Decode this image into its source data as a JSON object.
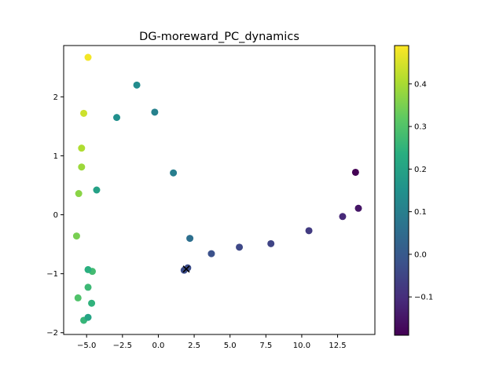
{
  "chart_data": {
    "type": "scatter",
    "title": "DG-moreward_PC_dynamics",
    "xlabel": "",
    "ylabel": "",
    "xlim": [
      -6.6,
      15.1
    ],
    "ylim": [
      -2.03,
      2.87
    ],
    "xticks": [
      -5.0,
      -2.5,
      0.0,
      2.5,
      5.0,
      7.5,
      10.0,
      12.5
    ],
    "xtick_labels": [
      "−5.0",
      "−2.5",
      "0.0",
      "2.5",
      "5.0",
      "7.5",
      "10.0",
      "12.5"
    ],
    "yticks": [
      -2,
      -1,
      0,
      1,
      2
    ],
    "ytick_labels": [
      "−2",
      "−1",
      "0",
      "1",
      "2"
    ],
    "grid": false,
    "colormap": "viridis",
    "colorbar": {
      "range": [
        -0.19,
        0.49
      ],
      "ticks": [
        -0.1,
        0.0,
        0.1,
        0.2,
        0.3,
        0.4
      ],
      "tick_labels": [
        "−0.1",
        "0.0",
        "0.1",
        "0.2",
        "0.3",
        "0.4"
      ]
    },
    "points": [
      {
        "x": -4.9,
        "y": 2.67,
        "c": 0.48
      },
      {
        "x": -5.2,
        "y": 1.72,
        "c": 0.44
      },
      {
        "x": -5.35,
        "y": 1.13,
        "c": 0.41
      },
      {
        "x": -5.35,
        "y": 0.81,
        "c": 0.39
      },
      {
        "x": -5.55,
        "y": 0.36,
        "c": 0.37
      },
      {
        "x": -5.7,
        "y": -0.36,
        "c": 0.35
      },
      {
        "x": -5.6,
        "y": -1.41,
        "c": 0.3
      },
      {
        "x": -5.2,
        "y": -1.79,
        "c": 0.26
      },
      {
        "x": -4.9,
        "y": -1.74,
        "c": 0.21
      },
      {
        "x": -4.65,
        "y": -1.5,
        "c": 0.25
      },
      {
        "x": -4.9,
        "y": -1.23,
        "c": 0.27
      },
      {
        "x": -4.6,
        "y": -0.96,
        "c": 0.28
      },
      {
        "x": -4.9,
        "y": -0.93,
        "c": 0.24
      },
      {
        "x": -4.3,
        "y": 0.42,
        "c": 0.2
      },
      {
        "x": -2.9,
        "y": 1.65,
        "c": 0.15
      },
      {
        "x": -1.5,
        "y": 2.2,
        "c": 0.14
      },
      {
        "x": -0.25,
        "y": 1.74,
        "c": 0.11
      },
      {
        "x": 1.05,
        "y": 0.71,
        "c": 0.1
      },
      {
        "x": 2.2,
        "y": -0.4,
        "c": 0.06
      },
      {
        "x": 3.7,
        "y": -0.66,
        "c": -0.02
      },
      {
        "x": 5.65,
        "y": -0.55,
        "c": -0.04
      },
      {
        "x": 7.85,
        "y": -0.49,
        "c": -0.05
      },
      {
        "x": 10.5,
        "y": -0.27,
        "c": -0.07
      },
      {
        "x": 12.85,
        "y": -0.03,
        "c": -0.11
      },
      {
        "x": 13.75,
        "y": 0.72,
        "c": -0.19
      },
      {
        "x": 13.95,
        "y": 0.11,
        "c": -0.15
      },
      {
        "x": 1.8,
        "y": -0.94,
        "c": -0.03
      },
      {
        "x": 2.05,
        "y": -0.9,
        "c": -0.03
      }
    ],
    "markers": [
      {
        "x": 1.95,
        "y": -0.92,
        "symbol": "x",
        "color": "#000000"
      }
    ]
  }
}
